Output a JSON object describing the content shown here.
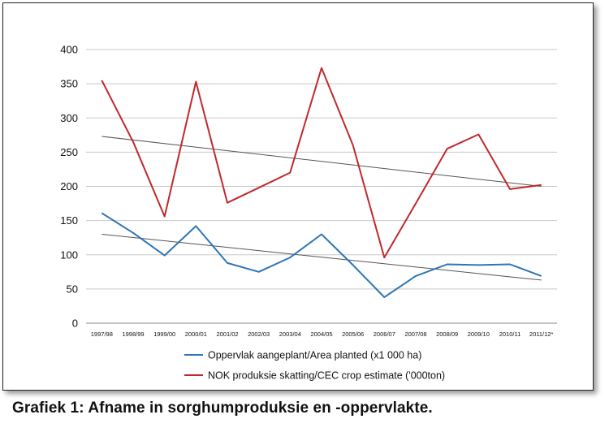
{
  "caption": "Grafiek 1: Afname in sorghumproduksie en -oppervlakte.",
  "chart_data": {
    "type": "line",
    "title": "",
    "xlabel": "",
    "ylabel": "",
    "ylim": [
      0,
      400
    ],
    "yticks": [
      0,
      50,
      100,
      150,
      200,
      250,
      300,
      350,
      400
    ],
    "grid": true,
    "legend_position": "bottom",
    "categories": [
      "1997/98",
      "1998/99",
      "1999/00",
      "2000/01",
      "2001/02",
      "2002/03",
      "2003/04",
      "2004/05",
      "2005/06",
      "2006/07",
      "2007/08",
      "2008/09",
      "2009/10",
      "2010/11",
      "2011/12*"
    ],
    "series": [
      {
        "name": "Oppervlak aangeplant/Area planted (x1 000 ha)",
        "color": "#2e75b6",
        "values": [
          161,
          132,
          99,
          142,
          88,
          75,
          96,
          130,
          85,
          38,
          69,
          86,
          85,
          86,
          69
        ],
        "trendline": {
          "start": 130,
          "end": 63,
          "color": "#555555"
        }
      },
      {
        "name": "NOK produksie skatting/CEC crop estimate ('000ton)",
        "color": "#c0292b",
        "values": [
          355,
          265,
          156,
          353,
          176,
          198,
          220,
          373,
          260,
          96,
          175,
          255,
          276,
          196,
          202
        ],
        "trendline": {
          "start": 273,
          "end": 200,
          "color": "#555555"
        }
      }
    ]
  }
}
